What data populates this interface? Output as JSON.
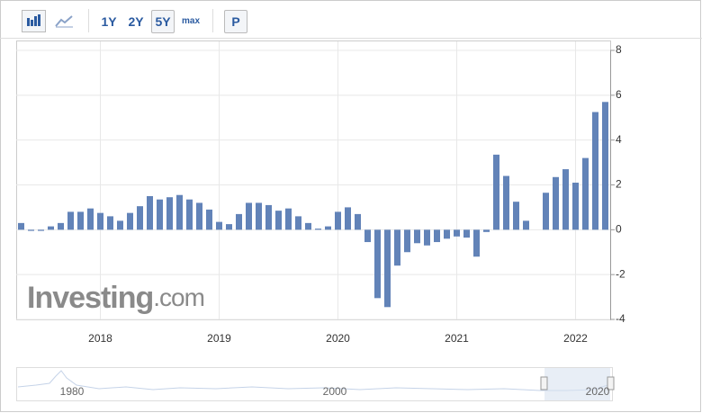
{
  "toolbar": {
    "buttons": [
      "1Y",
      "2Y",
      "5Y",
      "max",
      "P"
    ]
  },
  "watermark": {
    "brand": "Investing",
    "suffix": ".com"
  },
  "navigator": {
    "labels": [
      "1980",
      "2000",
      "2020"
    ]
  },
  "chart_data": {
    "type": "bar",
    "color": "#6283b8",
    "categories": [
      null,
      null,
      null,
      null,
      null,
      null,
      null,
      null,
      "2018",
      null,
      null,
      null,
      null,
      null,
      null,
      null,
      null,
      null,
      null,
      null,
      "2019",
      null,
      null,
      null,
      null,
      null,
      null,
      null,
      null,
      null,
      null,
      null,
      "2020",
      null,
      null,
      null,
      null,
      null,
      null,
      null,
      null,
      null,
      null,
      null,
      "2021",
      null,
      null,
      null,
      null,
      null,
      null,
      null,
      null,
      null,
      null,
      null,
      "2022",
      null,
      null,
      null
    ],
    "values": [
      0.3,
      -0.05,
      -0.05,
      0.15,
      0.3,
      0.8,
      0.8,
      0.95,
      0.75,
      0.6,
      0.4,
      0.75,
      1.05,
      1.5,
      1.35,
      1.45,
      1.55,
      1.35,
      1.2,
      0.9,
      0.35,
      0.25,
      0.7,
      1.2,
      1.2,
      1.1,
      0.85,
      0.95,
      0.6,
      0.3,
      0.05,
      0.15,
      0.8,
      1.0,
      0.7,
      -0.55,
      -3.05,
      -3.45,
      -1.6,
      -1.0,
      -0.6,
      -0.7,
      -0.55,
      -0.4,
      -0.3,
      -0.35,
      -1.2,
      -0.1,
      3.35,
      2.4,
      1.25,
      0.4,
      null,
      1.65,
      2.35,
      2.7,
      2.1,
      3.2,
      5.25,
      5.7
    ],
    "ylim": [
      -4,
      8
    ],
    "yticks": [
      -4,
      -2,
      0,
      2,
      4,
      6,
      8
    ],
    "grid": true
  }
}
